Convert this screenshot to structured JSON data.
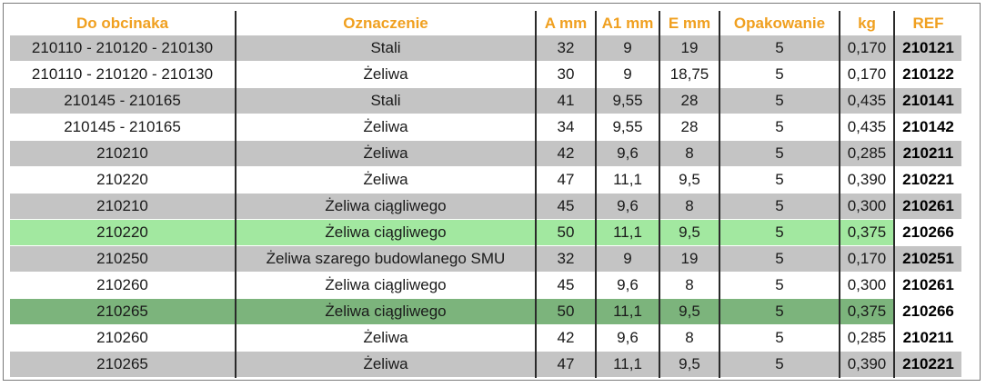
{
  "table": {
    "headers": [
      "Do obcinaka",
      "Oznaczenie",
      "A mm",
      "A1 mm",
      "E mm",
      "Opakowanie",
      "kg",
      "REF"
    ],
    "rows": [
      {
        "style": "grey",
        "cells": [
          "210110 - 210120 - 210130",
          "Stali",
          "32",
          "9",
          "19",
          "5",
          "0,170",
          "210121"
        ]
      },
      {
        "style": "white",
        "cells": [
          "210110 - 210120 - 210130",
          "Żeliwa",
          "30",
          "9",
          "18,75",
          "5",
          "0,170",
          "210122"
        ]
      },
      {
        "style": "grey",
        "cells": [
          "210145 - 210165",
          "Stali",
          "41",
          "9,55",
          "28",
          "5",
          "0,435",
          "210141"
        ]
      },
      {
        "style": "white",
        "cells": [
          "210145 - 210165",
          "Żeliwa",
          "34",
          "9,55",
          "28",
          "5",
          "0,435",
          "210142"
        ]
      },
      {
        "style": "grey",
        "cells": [
          "210210",
          "Żeliwa",
          "42",
          "9,6",
          "8",
          "5",
          "0,285",
          "210211"
        ]
      },
      {
        "style": "white",
        "cells": [
          "210220",
          "Żeliwa",
          "47",
          "11,1",
          "9,5",
          "5",
          "0,390",
          "210221"
        ]
      },
      {
        "style": "grey",
        "cells": [
          "210210",
          "Żeliwa ciągliwego",
          "45",
          "9,6",
          "8",
          "5",
          "0,300",
          "210261"
        ]
      },
      {
        "style": "light-green",
        "cells": [
          "210220",
          "Żeliwa ciągliwego",
          "50",
          "11,1",
          "9,5",
          "5",
          "0,375",
          "210266"
        ]
      },
      {
        "style": "grey",
        "cells": [
          "210250",
          "Żeliwa szarego budowlanego SMU",
          "32",
          "9",
          "19",
          "5",
          "0,170",
          "210251"
        ]
      },
      {
        "style": "white",
        "cells": [
          "210260",
          "Żeliwa ciągliwego",
          "45",
          "9,6",
          "8",
          "5",
          "0,300",
          "210261"
        ]
      },
      {
        "style": "dark-green",
        "cells": [
          "210265",
          "Żeliwa ciągliwego",
          "50",
          "11,1",
          "9,5",
          "5",
          "0,375",
          "210266"
        ]
      },
      {
        "style": "white",
        "cells": [
          "210260",
          "Żeliwa",
          "42",
          "9,6",
          "8",
          "5",
          "0,285",
          "210211"
        ]
      },
      {
        "style": "grey",
        "cells": [
          "210265",
          "Żeliwa",
          "47",
          "11,1",
          "9,5",
          "5",
          "0,390",
          "210221"
        ]
      }
    ]
  },
  "colors": {
    "header_text": "#f0a020",
    "row_grey": "#c4c4c4",
    "row_white": "#ffffff",
    "row_light_green": "#a2e8a0",
    "row_dark_green": "#7cb47c",
    "column_separator": "#2a2a2a"
  }
}
